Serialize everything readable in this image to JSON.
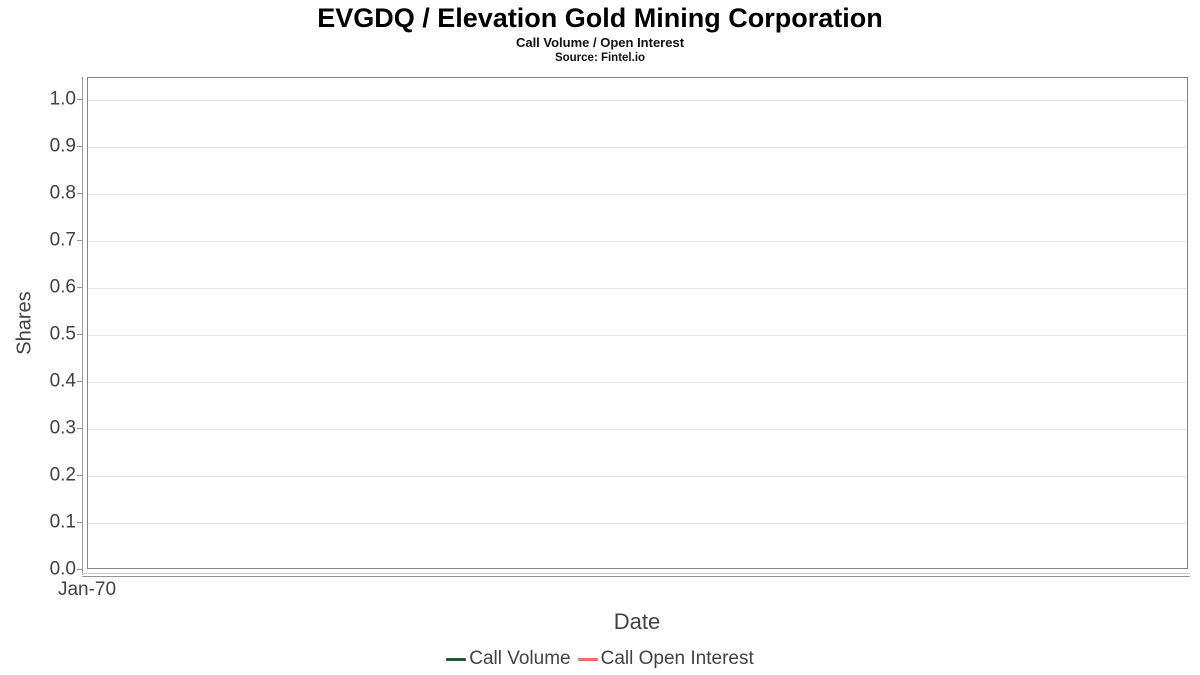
{
  "chart_data": {
    "type": "line",
    "title": "EVGDQ / Elevation Gold Mining Corporation",
    "subtitle": "Call Volume / Open Interest",
    "source": "Source: Fintel.io",
    "xlabel": "Date",
    "ylabel": "Shares",
    "x_tick_labels": [
      "Jan-70"
    ],
    "y_ticks": [
      1.0,
      0.9,
      0.8,
      0.7,
      0.6,
      0.5,
      0.4,
      0.3,
      0.2,
      0.1,
      0.0
    ],
    "y_tick_labels": [
      "1.0",
      "0.9",
      "0.8",
      "0.7",
      "0.6",
      "0.5",
      "0.4",
      "0.3",
      "0.2",
      "0.1",
      "0.0"
    ],
    "ylim": [
      0,
      1.047
    ],
    "grid": true,
    "legend_position": "bottom",
    "series": [
      {
        "name": "Call Volume",
        "color": "#275437",
        "x": [],
        "values": []
      },
      {
        "name": "Call Open Interest",
        "color": "#f96c6c",
        "x": [],
        "values": []
      }
    ],
    "colors": {
      "plot_border": "#848484",
      "gridline": "#e7e7e7",
      "axis_line": "#9a9a9a",
      "label_text": "#424242",
      "title_text": "#000000"
    }
  }
}
